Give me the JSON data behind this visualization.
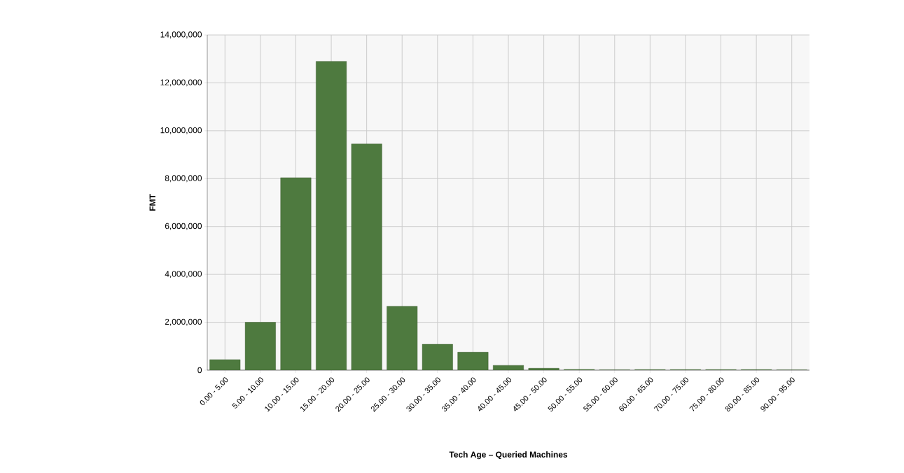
{
  "chart_data": {
    "type": "bar",
    "xlabel": "Tech Age – Queried Machines",
    "ylabel": "FMT",
    "categories": [
      "0.00 - 5.00",
      "5.00 - 10.00",
      "10.00 - 15.00",
      "15.00 - 20.00",
      "20.00 - 25.00",
      "25.00 - 30.00",
      "30.00 - 35.00",
      "35.00 - 40.00",
      "40.00 - 45.00",
      "45.00 - 50.00",
      "50.00 - 55.00",
      "55.00 - 60.00",
      "60.00 - 65.00",
      "70.00 - 75.00",
      "75.00 - 80.00",
      "80.00 - 85.00",
      "90.00 - 95.00"
    ],
    "values": [
      440000,
      2000000,
      8040000,
      12900000,
      9450000,
      2670000,
      1080000,
      750000,
      200000,
      80000,
      30000,
      10000,
      20000,
      20000,
      20000,
      20000,
      5000
    ],
    "color": "#4e7a3f",
    "ylim": [
      0,
      14000000
    ],
    "yticks": [
      {
        "value": 0,
        "label": "0"
      },
      {
        "value": 2000000,
        "label": "2,000,000"
      },
      {
        "value": 4000000,
        "label": "4,000,000"
      },
      {
        "value": 6000000,
        "label": "6,000,000"
      },
      {
        "value": 8000000,
        "label": "8,000,000"
      },
      {
        "value": 10000000,
        "label": "10,000,000"
      },
      {
        "value": 12000000,
        "label": "12,000,000"
      },
      {
        "value": 14000000,
        "label": "14,000,000"
      }
    ],
    "grid": true
  }
}
